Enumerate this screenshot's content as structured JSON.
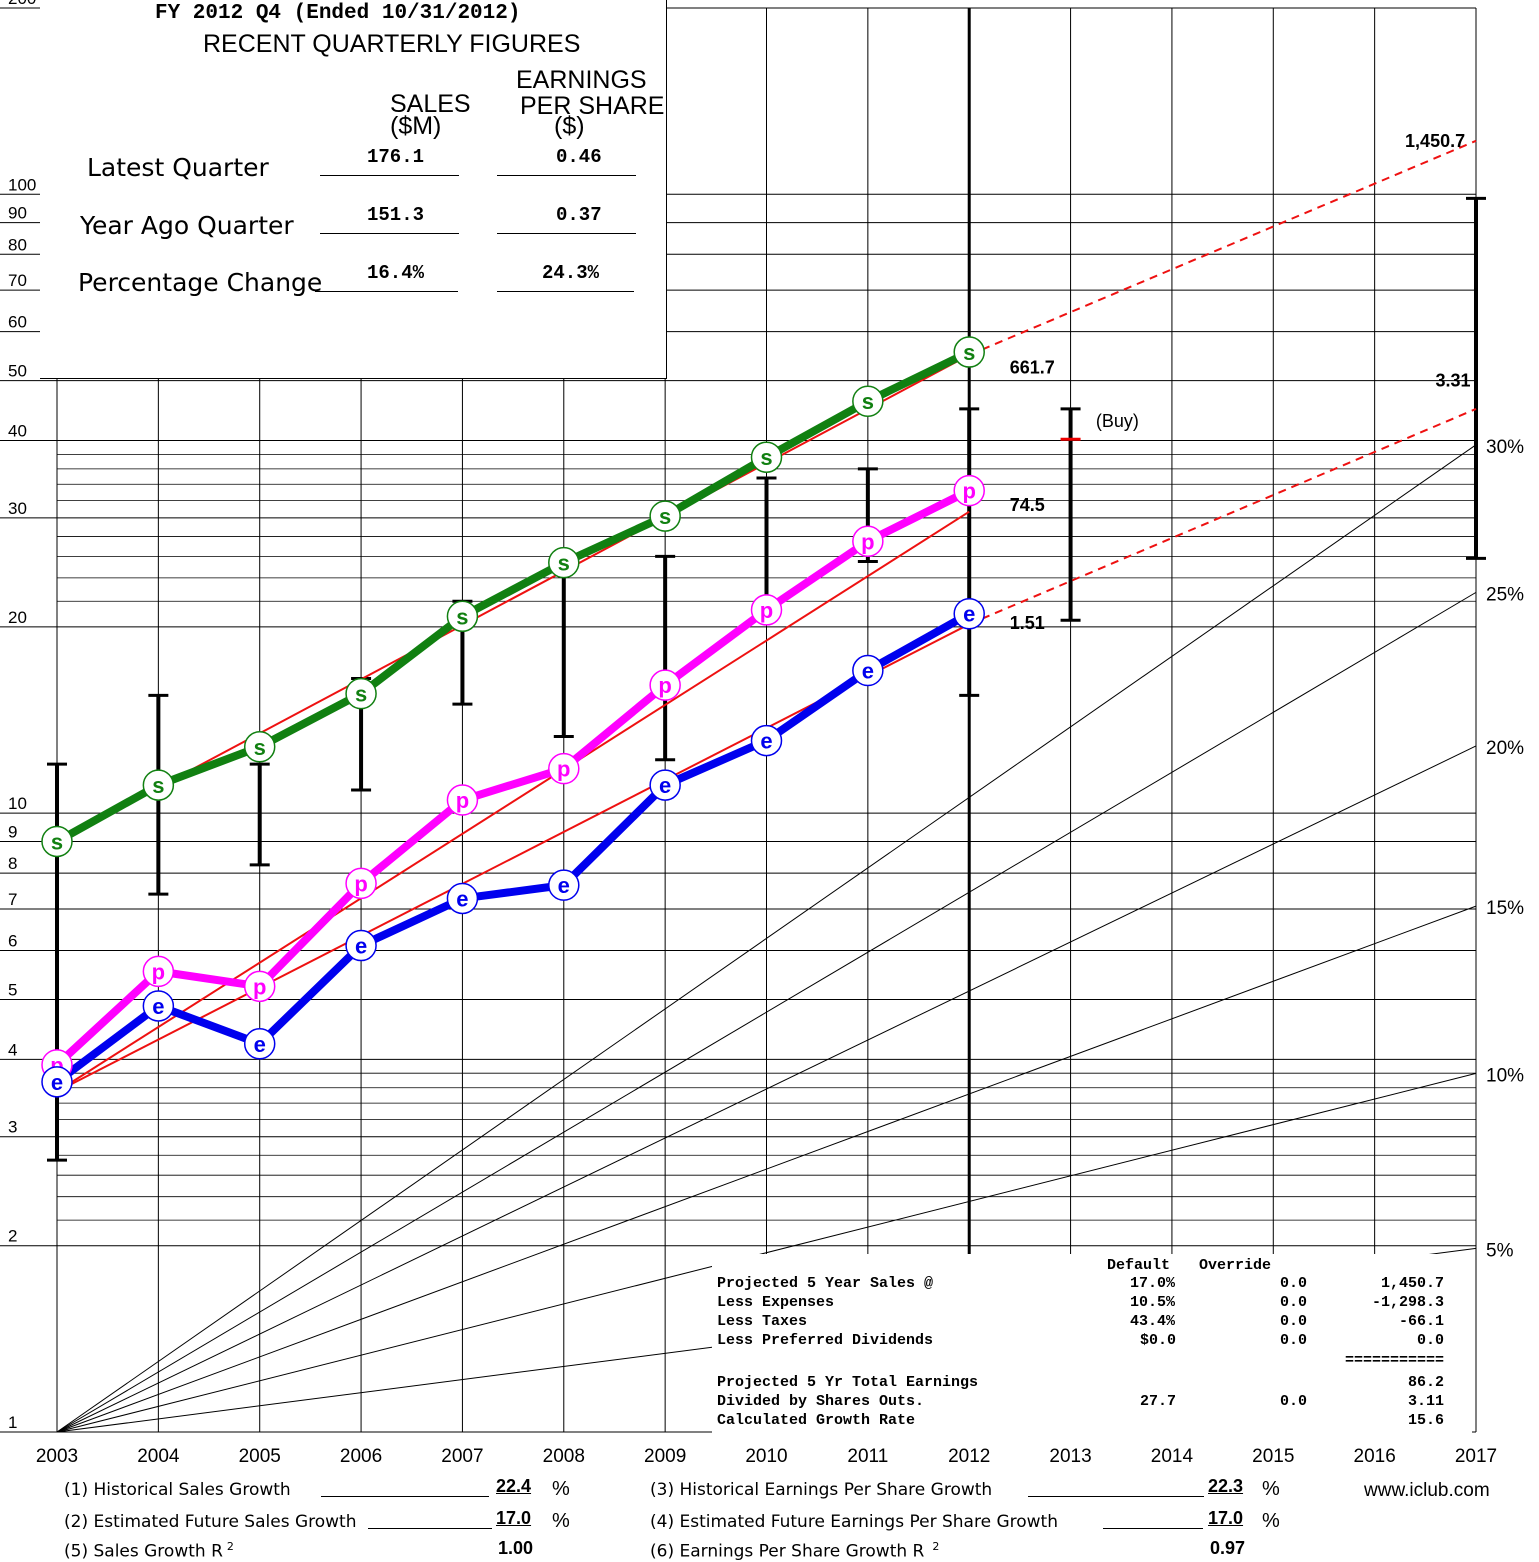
{
  "quarter_box": {
    "header": "FY 2012 Q4 (Ended 10/31/2012)",
    "title": "RECENT QUARTERLY FIGURES",
    "col_sales": [
      "SALES",
      "($M)"
    ],
    "col_eps": [
      "EARNINGS",
      "PER SHARE",
      "($)"
    ],
    "rows": [
      {
        "label": "Latest Quarter",
        "sales": "176.1",
        "eps": "0.46"
      },
      {
        "label": "Year Ago Quarter",
        "sales": "151.3",
        "eps": "0.37"
      },
      {
        "label": "Percentage Change",
        "sales": "16.4%",
        "eps": "24.3%"
      }
    ]
  },
  "projection_table": {
    "col_default": "Default",
    "col_override": "Override",
    "rows": [
      {
        "label": "Projected 5 Year Sales @",
        "default": "17.0%",
        "override": "0.0",
        "value": "1,450.7"
      },
      {
        "label": "Less Expenses",
        "default": "10.5%",
        "override": "0.0",
        "value": "-1,298.3"
      },
      {
        "label": "Less Taxes",
        "default": "43.4%",
        "override": "0.0",
        "value": "-66.1"
      },
      {
        "label": "Less Preferred Dividends",
        "default": "$0.0",
        "override": "0.0",
        "value": "0.0"
      }
    ],
    "separator": "===========",
    "rows2": [
      {
        "label": "Projected 5 Yr Total Earnings",
        "default": "",
        "override": "",
        "value": "86.2"
      },
      {
        "label": "Divided by Shares Outs.",
        "default": "27.7",
        "override": "0.0",
        "value": "3.11"
      },
      {
        "label": "Calculated Growth Rate",
        "default": "",
        "override": "",
        "value": "15.6"
      }
    ]
  },
  "bottom": {
    "items": [
      {
        "label": "(1) Historical Sales Growth",
        "value": "22.4",
        "unit": "%"
      },
      {
        "label": "(2) Estimated Future Sales Growth",
        "value": "17.0",
        "unit": "%"
      },
      {
        "label": "(5) Sales Growth R",
        "sup": "2",
        "value": "1.00",
        "unit": ""
      },
      {
        "label": "(3) Historical Earnings Per Share Growth",
        "value": "22.3",
        "unit": "%"
      },
      {
        "label": "(4) Estimated Future Earnings Per Share Growth",
        "value": "17.0",
        "unit": "%"
      },
      {
        "label": "(6) Earnings Per Share Growth R",
        "sup": "2",
        "value": "0.97",
        "unit": ""
      }
    ],
    "website": "www.iclub.com"
  },
  "chart_data": {
    "type": "line",
    "y_scale": "log",
    "ylim": [
      1,
      200
    ],
    "xlim": [
      2003,
      2017
    ],
    "y_ticks": [
      "1",
      "2",
      "3",
      "4",
      "5",
      "6",
      "7",
      "8",
      "9",
      "10",
      "20",
      "30",
      "40",
      "50",
      "60",
      "70",
      "80",
      "90",
      "100",
      "200"
    ],
    "x_ticks": [
      "2003",
      "2004",
      "2005",
      "2006",
      "2007",
      "2008",
      "2009",
      "2010",
      "2011",
      "2012",
      "2013",
      "2014",
      "2015",
      "2016",
      "2017"
    ],
    "growth_rate_labels": [
      "5%",
      "10%",
      "15%",
      "20%",
      "25%",
      "30%"
    ],
    "growth_rates": [
      5,
      10,
      15,
      20,
      25,
      30
    ],
    "series": [
      {
        "marker": "s",
        "color": "#118011",
        "x": [
          2003,
          2004,
          2005,
          2006,
          2007,
          2008,
          2009,
          2010,
          2011,
          2012
        ],
        "y": [
          9.0,
          11.1,
          12.8,
          15.6,
          20.8,
          25.4,
          30.2,
          37.6,
          46.3,
          55.6
        ]
      },
      {
        "marker": "p",
        "color": "#ff00ff",
        "x": [
          2003,
          2004,
          2005,
          2006,
          2007,
          2008,
          2009,
          2010,
          2011,
          2012
        ],
        "y": [
          3.92,
          5.55,
          5.25,
          7.7,
          10.5,
          11.8,
          16.1,
          21.3,
          27.5,
          33.2
        ]
      },
      {
        "marker": "e",
        "color": "#0000ee",
        "x": [
          2003,
          2004,
          2005,
          2006,
          2007,
          2008,
          2009,
          2010,
          2011,
          2012
        ],
        "y": [
          3.68,
          4.88,
          4.24,
          6.11,
          7.28,
          7.65,
          11.1,
          13.1,
          17.0,
          21.0
        ]
      }
    ],
    "trend_lines": [
      {
        "x": [
          2003,
          2012
        ],
        "y": [
          9.0,
          55.0
        ]
      },
      {
        "x": [
          2003,
          2012
        ],
        "y": [
          3.55,
          30.7
        ]
      },
      {
        "x": [
          2003,
          2012
        ],
        "y": [
          3.55,
          20.2
        ]
      }
    ],
    "projections": [
      {
        "x": [
          2012,
          2017
        ],
        "y": [
          55.0,
          122.0
        ]
      },
      {
        "x": [
          2012,
          2017
        ],
        "y": [
          20.2,
          45.0
        ]
      }
    ],
    "price_ranges": [
      {
        "x": 2003,
        "high": 12.0,
        "low": 2.75
      },
      {
        "x": 2004,
        "high": 15.5,
        "low": 7.4
      },
      {
        "x": 2005,
        "high": 12.0,
        "low": 8.25
      },
      {
        "x": 2006,
        "high": 16.5,
        "low": 10.9
      },
      {
        "x": 2007,
        "high": 22.0,
        "low": 15.0
      },
      {
        "x": 2008,
        "high": 25.8,
        "low": 13.3
      },
      {
        "x": 2009,
        "high": 26.0,
        "low": 12.2
      },
      {
        "x": 2010,
        "high": 34.8,
        "low": 20.8
      },
      {
        "x": 2011,
        "high": 36.0,
        "low": 25.5
      },
      {
        "x": 2012,
        "high": 45.0,
        "low": 15.5
      },
      {
        "x": 2013,
        "high": 45.0,
        "low": 20.5
      }
    ],
    "buy_price": 40.2,
    "projected_range": {
      "x": 2017,
      "high": 98.5,
      "low": 25.8
    },
    "annotations": [
      {
        "text": "661.7",
        "x": 2012.4,
        "y": 52.5
      },
      {
        "text": "74.5",
        "x": 2012.4,
        "y": 31.5
      },
      {
        "text": "1.51",
        "x": 2012.4,
        "y": 20.3
      },
      {
        "text": "(Buy)",
        "x": 2013.25,
        "y": 43.0
      },
      {
        "text": "1,450.7",
        "x": 2016.3,
        "y": 122.0
      },
      {
        "text": "3.31",
        "x": 2016.6,
        "y": 50.0
      }
    ]
  }
}
